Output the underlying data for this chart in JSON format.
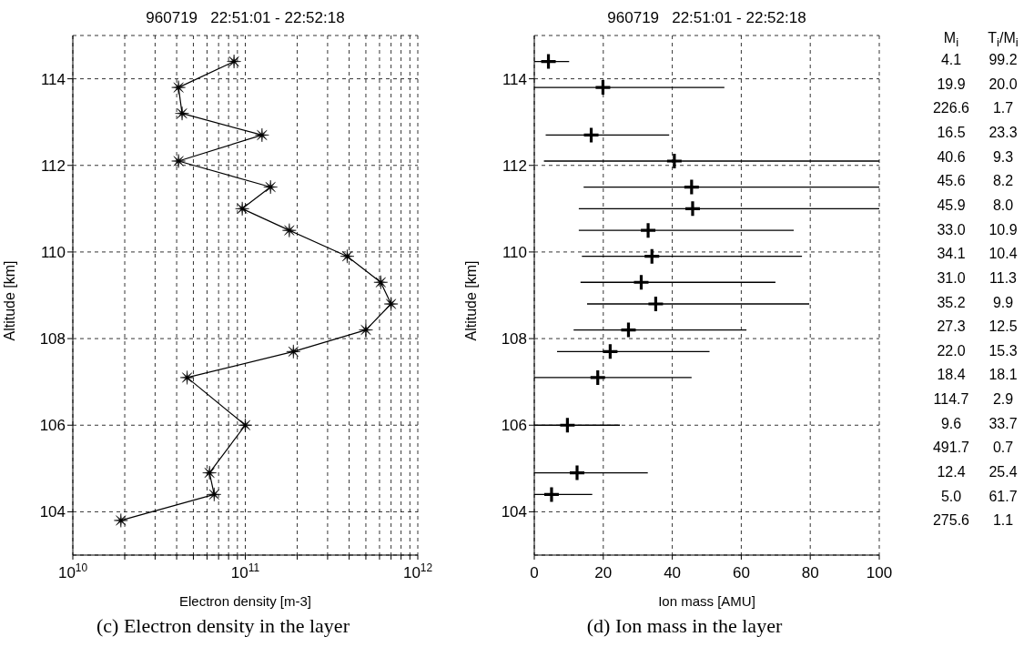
{
  "chart_data": [
    {
      "type": "line",
      "title": "960719   22:51:01 - 22:52:18",
      "xlabel": "Electron density [m-3]",
      "ylabel": "Altitude [km]",
      "color": "#000000",
      "marker": "star",
      "log": "x",
      "grid": true,
      "x": [
        86000000000.0,
        41000000000.0,
        43000000000.0,
        125000000000.0,
        41000000000.0,
        140000000000.0,
        96000000000.0,
        180000000000.0,
        390000000000.0,
        610000000000.0,
        700000000000.0,
        500000000000.0,
        190000000000.0,
        46000000000.0,
        null,
        100000000000.0,
        null,
        62000000000.0,
        66000000000.0,
        19000000000.0
      ],
      "values": [
        114.4,
        113.8,
        113.2,
        112.7,
        112.1,
        111.5,
        111.0,
        110.5,
        109.9,
        109.3,
        108.8,
        108.2,
        107.7,
        107.1,
        null,
        106.0,
        null,
        104.9,
        104.4,
        103.8
      ],
      "xlim": [
        10000000000.0,
        1000000000000.0
      ],
      "xticks": [
        {
          "value": 10000000000.0,
          "label": "10$^{10}$"
        },
        {
          "value": 20000000000.0,
          "label": null
        },
        {
          "value": 30000000000.0,
          "label": null
        },
        {
          "value": 40000000000.0,
          "label": null
        },
        {
          "value": 50000000000.0,
          "label": null
        },
        {
          "value": 60000000000.0,
          "label": null
        },
        {
          "value": 70000000000.0,
          "label": null
        },
        {
          "value": 80000000000.0,
          "label": null
        },
        {
          "value": 90000000000.0,
          "label": null
        },
        {
          "value": 100000000000.0,
          "label": "10$^{11}$"
        },
        {
          "value": 200000000000.0,
          "label": null
        },
        {
          "value": 300000000000.0,
          "label": null
        },
        {
          "value": 400000000000.0,
          "label": null
        },
        {
          "value": 500000000000.0,
          "label": null
        },
        {
          "value": 600000000000.0,
          "label": null
        },
        {
          "value": 700000000000.0,
          "label": null
        },
        {
          "value": 800000000000.0,
          "label": null
        },
        {
          "value": 900000000000.0,
          "label": null
        },
        {
          "value": 1000000000000.0,
          "label": "10$^{12}$"
        }
      ],
      "ylim": [
        103,
        115
      ],
      "yticks": [
        104,
        106,
        108,
        110,
        112,
        114
      ],
      "annotations": [
        "(c) Electron density in the layer"
      ]
    },
    {
      "type": "scatter",
      "title": "960719   22:51:01 - 22:52:18",
      "xlabel": "Ion mass [AMU]",
      "ylabel": "Altitude [km]",
      "color": "#000000",
      "marker": "cross",
      "grid": true,
      "x": [
        4.1,
        19.9,
        null,
        16.5,
        40.6,
        45.6,
        45.9,
        33.0,
        34.1,
        31.0,
        35.2,
        27.3,
        22.0,
        18.4,
        null,
        9.6,
        null,
        12.4,
        5.0,
        null
      ],
      "values": [
        114.4,
        113.8,
        null,
        112.7,
        112.1,
        111.5,
        111.0,
        110.5,
        109.9,
        109.3,
        108.8,
        108.2,
        107.7,
        107.1,
        null,
        106.0,
        null,
        104.9,
        104.4,
        null
      ],
      "xerrors": [
        [
          0,
          10.1
        ],
        [
          0,
          55.1
        ],
        null,
        [
          3.3,
          39.1
        ],
        [
          2.8,
          100
        ],
        [
          14.3,
          100
        ],
        [
          12.9,
          100
        ],
        [
          12.9,
          75.2
        ],
        [
          13.8,
          77.6
        ],
        [
          13.4,
          69.9
        ],
        [
          15.3,
          79.7
        ],
        [
          11.4,
          61.5
        ],
        [
          6.6,
          50.8
        ],
        [
          0,
          45.6
        ],
        null,
        [
          0,
          24.8
        ],
        null,
        [
          0,
          32.9
        ],
        [
          0,
          16.8
        ],
        null
      ],
      "xlim": [
        0,
        100
      ],
      "xticks": [
        0,
        20,
        40,
        60,
        80,
        100
      ],
      "ylim": [
        103,
        115
      ],
      "yticks": [
        104,
        106,
        108,
        110,
        112,
        114
      ],
      "annotations": [
        "M$_{i}$",
        "T$_{i}$/M$_{i}$",
        "4.1",
        "99.2",
        "19.9",
        "20.0",
        "226.6",
        "1.7",
        "16.5",
        "23.3",
        "40.6",
        "9.3",
        "45.6",
        "8.2",
        "45.9",
        "8.0",
        "33.0",
        "10.9",
        "34.1",
        "10.4",
        "31.0",
        "11.3",
        "35.2",
        "9.9",
        "27.3",
        "12.5",
        "22.0",
        "15.3",
        "18.4",
        "18.1",
        "114.7",
        "2.9",
        "9.6",
        "33.7",
        "491.7",
        "0.7",
        "12.4",
        "25.4",
        "5.0",
        "61.7",
        "275.6",
        "1.1",
        "(d) Ion mass in the layer"
      ]
    }
  ]
}
